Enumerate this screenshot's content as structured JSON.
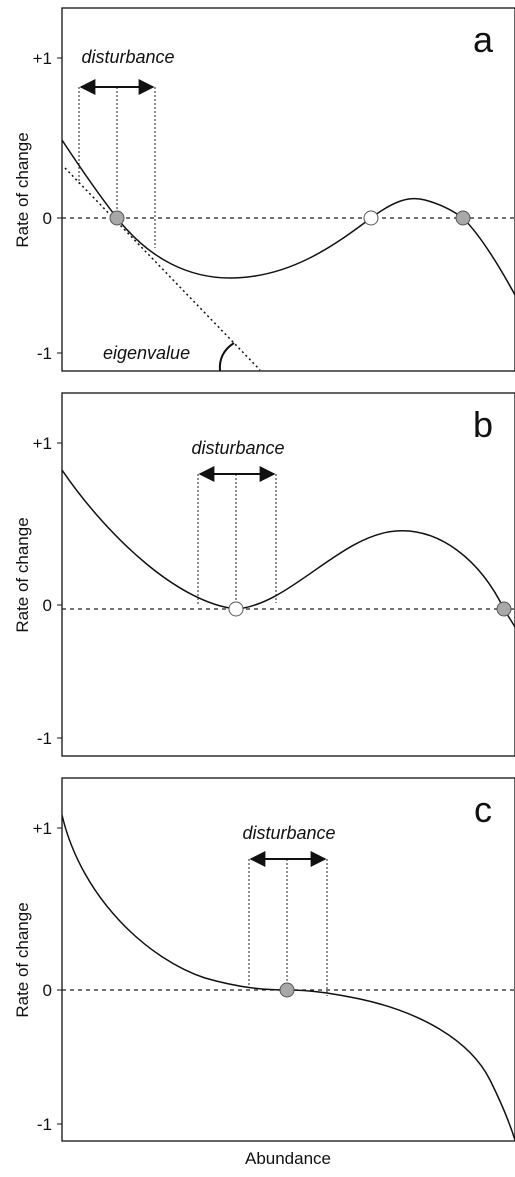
{
  "figure": {
    "x_axis_label": "Abundance",
    "colors": {
      "stable_point": "#a8a8a8",
      "unstable_point": "#ffffff",
      "line": "#111111"
    }
  },
  "panels": [
    {
      "id": "a",
      "letter": "a",
      "ylabel": "Rate of change",
      "ticks": [
        "+1",
        "0",
        "-1"
      ],
      "disturbance_label": "disturbance",
      "eigenvalue_label": "eigenvalue",
      "equilibria": [
        {
          "type": "stable"
        },
        {
          "type": "unstable"
        },
        {
          "type": "stable"
        }
      ]
    },
    {
      "id": "b",
      "letter": "b",
      "ylabel": "Rate of change",
      "ticks": [
        "+1",
        "0",
        "-1"
      ],
      "disturbance_label": "disturbance",
      "equilibria": [
        {
          "type": "unstable"
        },
        {
          "type": "stable"
        }
      ]
    },
    {
      "id": "c",
      "letter": "c",
      "ylabel": "Rate of change",
      "ticks": [
        "+1",
        "0",
        "-1"
      ],
      "disturbance_label": "disturbance",
      "equilibria": [
        {
          "type": "stable"
        }
      ]
    }
  ]
}
